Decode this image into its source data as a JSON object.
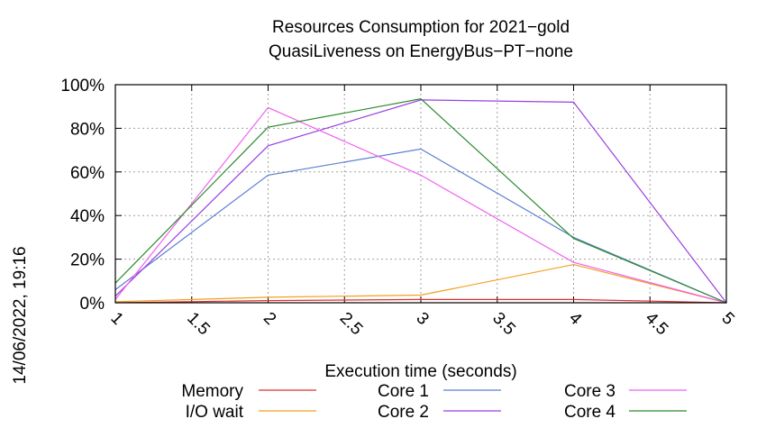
{
  "chart_data": {
    "type": "line",
    "title": [
      "Resources Consumption for 2021−gold",
      "QuasiLiveness on EnergyBus−PT−none"
    ],
    "xlabel": "Execution time (seconds)",
    "ylabel": "",
    "timestamp": "14/06/2022, 19:16",
    "xlim": [
      1,
      5
    ],
    "ylim": [
      0,
      100
    ],
    "x_ticks": [
      {
        "value": 1,
        "label": "1"
      },
      {
        "value": 1.5,
        "label": "1.5"
      },
      {
        "value": 2,
        "label": "2"
      },
      {
        "value": 2.5,
        "label": "2.5"
      },
      {
        "value": 3,
        "label": "3"
      },
      {
        "value": 3.5,
        "label": "3.5"
      },
      {
        "value": 4,
        "label": "4"
      },
      {
        "value": 4.5,
        "label": "4.5"
      },
      {
        "value": 5,
        "label": "5"
      }
    ],
    "y_ticks": [
      {
        "value": 0,
        "label": "0%"
      },
      {
        "value": 20,
        "label": "20%"
      },
      {
        "value": 40,
        "label": "40%"
      },
      {
        "value": 60,
        "label": "60%"
      },
      {
        "value": 80,
        "label": "80%"
      },
      {
        "value": 100,
        "label": "100%"
      }
    ],
    "grid": true,
    "legend_position": "bottom",
    "x": [
      1,
      2,
      3,
      4,
      5
    ],
    "series": [
      {
        "name": "Memory",
        "color": "#e03030",
        "values": [
          0,
          1,
          1.5,
          1.5,
          0
        ]
      },
      {
        "name": "I/O wait",
        "color": "#f0a020",
        "values": [
          0.5,
          2.5,
          3.5,
          17.5,
          0
        ]
      },
      {
        "name": "Core 1",
        "color": "#5b7fd0",
        "values": [
          6,
          58.5,
          70.5,
          30,
          0
        ]
      },
      {
        "name": "Core 2",
        "color": "#9a40e0",
        "values": [
          3,
          72,
          93,
          92,
          0
        ]
      },
      {
        "name": "Core 3",
        "color": "#f060f0",
        "values": [
          1.5,
          89.5,
          58.5,
          18.5,
          0
        ]
      },
      {
        "name": "Core 4",
        "color": "#2c8a2c",
        "values": [
          9,
          80.5,
          93.5,
          29.5,
          0
        ]
      }
    ]
  }
}
